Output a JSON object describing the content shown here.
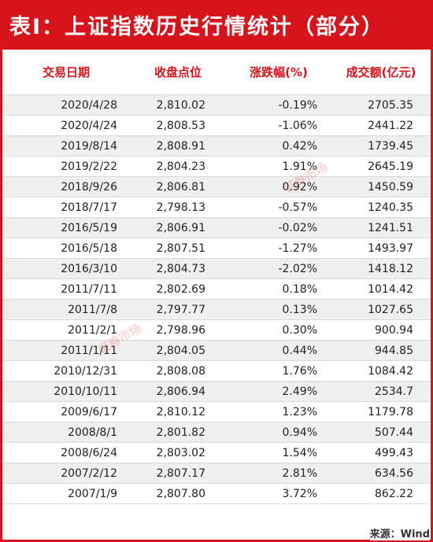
{
  "title": "表Ⅰ：上证指数历史行情统计（部分）",
  "columns": [
    "交易日期",
    "收盘点位",
    "涨跌幅(%)",
    "成交额(亿元)"
  ],
  "rows": [
    {
      "date": "2020/4/28",
      "close": "2,810.02",
      "pct": "-0.19%",
      "vol": "2705.35"
    },
    {
      "date": "2020/4/24",
      "close": "2,808.53",
      "pct": "-1.06%",
      "vol": "2441.22"
    },
    {
      "date": "2019/8/14",
      "close": "2,808.91",
      "pct": "0.42%",
      "vol": "1739.45"
    },
    {
      "date": "2019/2/22",
      "close": "2,804.23",
      "pct": "1.91%",
      "vol": "2645.19"
    },
    {
      "date": "2018/9/26",
      "close": "2,806.81",
      "pct": "0.92%",
      "vol": "1450.59"
    },
    {
      "date": "2018/7/17",
      "close": "2,798.13",
      "pct": "-0.57%",
      "vol": "1240.35"
    },
    {
      "date": "2016/5/19",
      "close": "2,806.91",
      "pct": "-0.02%",
      "vol": "1241.51"
    },
    {
      "date": "2016/5/18",
      "close": "2,807.51",
      "pct": "-1.27%",
      "vol": "1493.97"
    },
    {
      "date": "2016/3/10",
      "close": "2,804.73",
      "pct": "-2.02%",
      "vol": "1418.12"
    },
    {
      "date": "2011/7/11",
      "close": "2,802.69",
      "pct": "0.18%",
      "vol": "1014.42"
    },
    {
      "date": "2011/7/8",
      "close": "2,797.77",
      "pct": "0.13%",
      "vol": "1027.65"
    },
    {
      "date": "2011/2/1",
      "close": "2,798.96",
      "pct": "0.30%",
      "vol": "900.94"
    },
    {
      "date": "2011/1/11",
      "close": "2,804.05",
      "pct": "0.44%",
      "vol": "944.85"
    },
    {
      "date": "2010/12/31",
      "close": "2,808.08",
      "pct": "1.76%",
      "vol": "1084.42"
    },
    {
      "date": "2010/10/11",
      "close": "2,806.94",
      "pct": "2.49%",
      "vol": "2534.7"
    },
    {
      "date": "2009/6/17",
      "close": "2,810.12",
      "pct": "1.23%",
      "vol": "1179.78"
    },
    {
      "date": "2008/8/1",
      "close": "2,801.82",
      "pct": "0.94%",
      "vol": "507.44"
    },
    {
      "date": "2008/6/24",
      "close": "2,803.02",
      "pct": "1.54%",
      "vol": "499.43"
    },
    {
      "date": "2007/2/12",
      "close": "2,807.17",
      "pct": "2.81%",
      "vol": "634.56"
    },
    {
      "date": "2007/1/9",
      "close": "2,807.80",
      "pct": "3.72%",
      "vol": "862.22"
    }
  ],
  "source": "来源：Wind",
  "watermark": "证券市场",
  "colors": {
    "accent": "#d7141b",
    "stripe": "#efefef"
  }
}
